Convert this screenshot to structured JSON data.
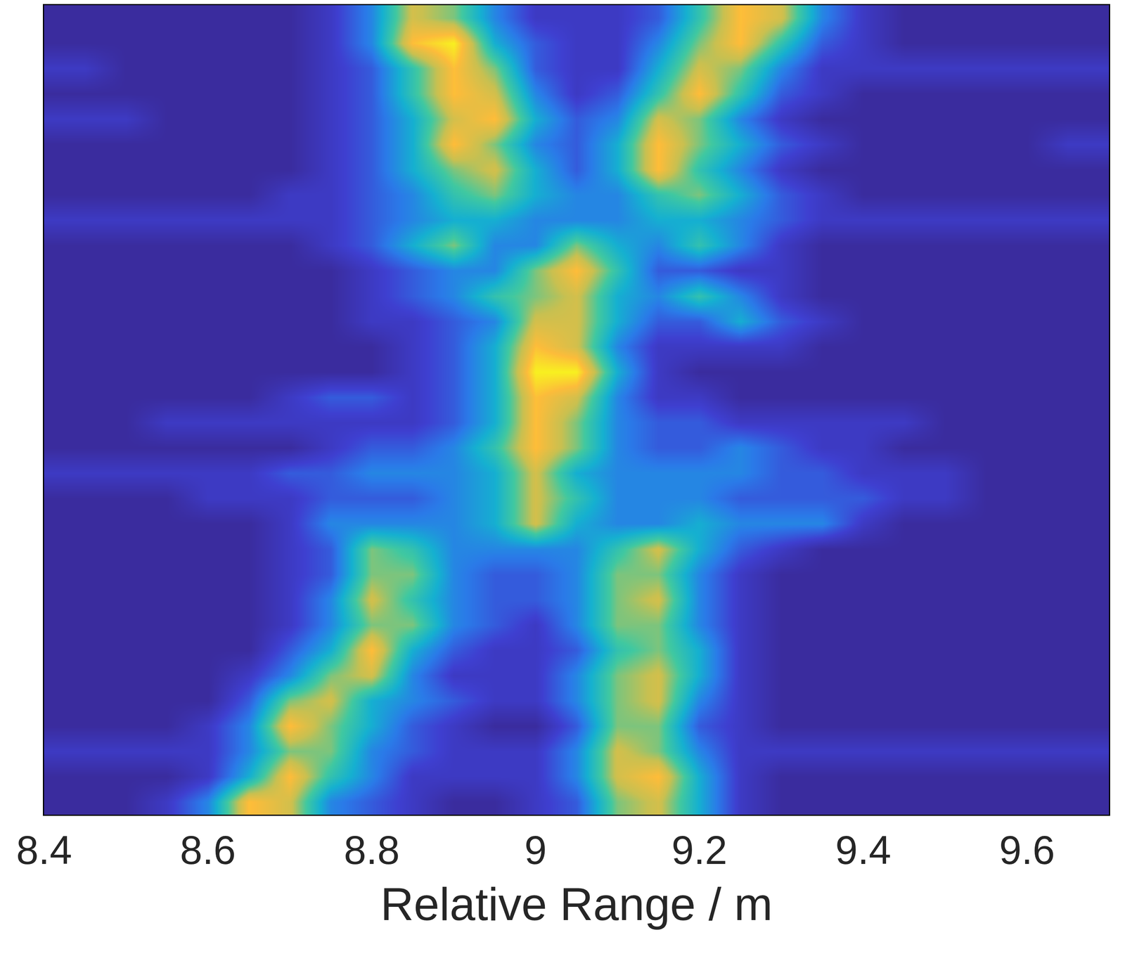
{
  "chart_data": {
    "type": "heatmap",
    "xlabel": "Relative Range / m",
    "xlim": [
      8.4,
      9.7
    ],
    "xticks": [
      8.4,
      8.6,
      8.8,
      9,
      9.2,
      9.4,
      9.6
    ],
    "ylim": [
      31.5,
      -0.5
    ],
    "tick_labels": "x",
    "grid": false,
    "zlim": [
      0,
      9
    ],
    "x": [
      8.4,
      8.45,
      8.5,
      8.55,
      8.6,
      8.65,
      8.7,
      8.75,
      8.8,
      8.85,
      8.9,
      8.95,
      9.0,
      9.05,
      9.1,
      9.15,
      9.2,
      9.25,
      9.3,
      9.35,
      9.4,
      9.45,
      9.5,
      9.55,
      9.6,
      9.65,
      9.7
    ],
    "y": [
      0,
      1,
      2,
      3,
      4,
      5,
      6,
      7,
      8,
      9,
      10,
      11,
      12,
      13,
      14,
      15,
      16,
      17,
      18,
      19,
      20,
      21,
      22,
      23,
      24,
      25,
      26,
      27,
      28,
      29,
      30,
      31
    ],
    "z": [
      [
        0,
        0,
        0,
        0,
        0,
        0,
        0,
        1,
        3,
        7,
        6,
        3,
        1,
        1,
        1,
        2,
        5,
        8,
        7,
        3,
        1,
        0,
        0,
        0,
        0,
        0,
        0
      ],
      [
        0,
        0,
        0,
        0,
        0,
        0,
        0,
        1,
        3,
        8,
        9,
        4,
        2,
        1,
        1,
        3,
        6,
        8,
        5,
        2,
        1,
        0,
        0,
        0,
        0,
        0,
        0
      ],
      [
        1,
        1,
        0,
        0,
        0,
        0,
        0,
        1,
        2,
        5,
        8,
        6,
        2,
        1,
        1,
        4,
        7,
        6,
        3,
        1,
        1,
        1,
        1,
        1,
        1,
        1,
        1
      ],
      [
        0,
        0,
        0,
        0,
        0,
        0,
        0,
        1,
        2,
        5,
        8,
        7,
        3,
        1,
        2,
        5,
        8,
        5,
        2,
        1,
        0,
        0,
        0,
        0,
        0,
        0,
        0
      ],
      [
        1,
        1,
        1,
        0,
        0,
        0,
        0,
        1,
        2,
        4,
        7,
        8,
        4,
        2,
        3,
        7,
        6,
        3,
        1,
        0,
        0,
        0,
        0,
        0,
        0,
        0,
        0
      ],
      [
        0,
        0,
        0,
        0,
        0,
        0,
        0,
        1,
        2,
        4,
        8,
        6,
        3,
        2,
        4,
        8,
        6,
        4,
        2,
        1,
        0,
        0,
        0,
        0,
        0,
        1,
        1
      ],
      [
        0,
        0,
        0,
        0,
        0,
        0,
        0,
        1,
        2,
        4,
        6,
        7,
        4,
        2,
        4,
        8,
        5,
        3,
        1,
        0,
        0,
        0,
        0,
        0,
        0,
        0,
        0
      ],
      [
        0,
        0,
        0,
        0,
        0,
        0,
        1,
        1,
        2,
        3,
        5,
        6,
        4,
        3,
        3,
        5,
        6,
        4,
        2,
        1,
        0,
        0,
        0,
        0,
        0,
        0,
        0
      ],
      [
        1,
        1,
        1,
        1,
        1,
        1,
        1,
        1,
        2,
        3,
        4,
        4,
        3,
        3,
        3,
        4,
        4,
        3,
        2,
        1,
        1,
        1,
        1,
        1,
        1,
        1,
        1
      ],
      [
        0,
        0,
        0,
        0,
        0,
        0,
        0,
        1,
        2,
        4,
        6,
        3,
        3,
        6,
        4,
        3,
        5,
        3,
        1,
        0,
        0,
        0,
        0,
        0,
        0,
        0,
        0
      ],
      [
        0,
        0,
        0,
        0,
        0,
        0,
        0,
        0,
        1,
        2,
        3,
        3,
        6,
        8,
        5,
        2,
        2,
        1,
        1,
        0,
        0,
        0,
        0,
        0,
        0,
        0,
        0
      ],
      [
        0,
        0,
        0,
        0,
        0,
        0,
        0,
        0,
        1,
        2,
        3,
        5,
        6,
        7,
        4,
        3,
        5,
        3,
        1,
        0,
        0,
        0,
        0,
        0,
        0,
        0,
        0
      ],
      [
        0,
        0,
        0,
        0,
        0,
        0,
        0,
        0,
        1,
        1,
        2,
        3,
        7,
        7,
        4,
        2,
        2,
        4,
        2,
        1,
        0,
        0,
        0,
        0,
        0,
        0,
        0
      ],
      [
        0,
        0,
        0,
        0,
        0,
        0,
        0,
        0,
        0,
        1,
        2,
        4,
        8,
        7,
        3,
        1,
        1,
        1,
        1,
        0,
        0,
        0,
        0,
        0,
        0,
        0,
        0
      ],
      [
        0,
        0,
        0,
        0,
        0,
        0,
        0,
        0,
        0,
        1,
        2,
        4,
        9,
        9,
        4,
        1,
        0,
        0,
        0,
        0,
        0,
        0,
        0,
        0,
        0,
        0,
        0
      ],
      [
        0,
        0,
        0,
        0,
        0,
        0,
        1,
        2,
        2,
        1,
        2,
        4,
        8,
        7,
        3,
        1,
        1,
        0,
        0,
        0,
        0,
        0,
        0,
        0,
        0,
        0,
        0
      ],
      [
        0,
        0,
        0,
        1,
        1,
        1,
        1,
        1,
        1,
        1,
        2,
        4,
        8,
        6,
        3,
        2,
        2,
        1,
        1,
        1,
        1,
        1,
        0,
        0,
        0,
        0,
        0
      ],
      [
        0,
        0,
        0,
        0,
        0,
        0,
        0,
        1,
        2,
        2,
        3,
        5,
        8,
        6,
        3,
        2,
        2,
        3,
        2,
        1,
        1,
        0,
        0,
        0,
        0,
        0,
        0
      ],
      [
        1,
        1,
        1,
        1,
        1,
        1,
        2,
        2,
        3,
        3,
        3,
        4,
        7,
        4,
        3,
        3,
        3,
        3,
        2,
        2,
        1,
        1,
        1,
        0,
        0,
        0,
        0
      ],
      [
        0,
        0,
        0,
        0,
        1,
        1,
        1,
        2,
        2,
        2,
        3,
        4,
        7,
        5,
        3,
        3,
        3,
        2,
        2,
        2,
        2,
        1,
        1,
        0,
        0,
        0,
        0
      ],
      [
        0,
        0,
        0,
        0,
        0,
        0,
        1,
        3,
        3,
        3,
        3,
        4,
        7,
        4,
        3,
        3,
        4,
        3,
        3,
        3,
        1,
        0,
        0,
        0,
        0,
        0,
        0
      ],
      [
        0,
        0,
        0,
        0,
        0,
        0,
        1,
        2,
        6,
        5,
        3,
        3,
        3,
        3,
        5,
        7,
        4,
        2,
        1,
        0,
        0,
        0,
        0,
        0,
        0,
        0,
        0
      ],
      [
        0,
        0,
        0,
        0,
        0,
        0,
        1,
        2,
        6,
        6,
        3,
        2,
        2,
        3,
        6,
        6,
        3,
        1,
        0,
        0,
        0,
        0,
        0,
        0,
        0,
        0,
        0
      ],
      [
        0,
        0,
        0,
        0,
        0,
        0,
        1,
        3,
        7,
        5,
        3,
        2,
        2,
        3,
        6,
        7,
        3,
        1,
        0,
        0,
        0,
        0,
        0,
        0,
        0,
        0,
        0
      ],
      [
        0,
        0,
        0,
        0,
        0,
        0,
        1,
        3,
        6,
        6,
        3,
        2,
        1,
        3,
        6,
        6,
        3,
        1,
        0,
        0,
        0,
        0,
        0,
        0,
        0,
        0,
        0
      ],
      [
        0,
        0,
        0,
        0,
        0,
        0,
        2,
        4,
        8,
        4,
        2,
        1,
        1,
        2,
        5,
        6,
        4,
        1,
        0,
        0,
        0,
        0,
        0,
        0,
        0,
        0,
        0
      ],
      [
        0,
        0,
        0,
        0,
        0,
        1,
        3,
        6,
        7,
        3,
        1,
        1,
        1,
        3,
        6,
        7,
        4,
        1,
        0,
        0,
        0,
        0,
        0,
        0,
        0,
        0,
        0
      ],
      [
        0,
        0,
        0,
        0,
        0,
        2,
        6,
        7,
        4,
        3,
        2,
        1,
        1,
        3,
        6,
        7,
        3,
        1,
        0,
        0,
        0,
        0,
        0,
        0,
        0,
        0,
        0
      ],
      [
        0,
        0,
        0,
        0,
        1,
        3,
        8,
        6,
        4,
        2,
        1,
        0,
        0,
        2,
        6,
        6,
        2,
        1,
        0,
        0,
        0,
        0,
        0,
        0,
        0,
        0,
        0
      ],
      [
        1,
        1,
        1,
        1,
        1,
        3,
        6,
        6,
        3,
        2,
        1,
        1,
        1,
        3,
        7,
        6,
        3,
        1,
        1,
        1,
        1,
        1,
        1,
        1,
        1,
        1,
        1
      ],
      [
        0,
        0,
        0,
        0,
        1,
        4,
        8,
        5,
        3,
        1,
        1,
        1,
        1,
        3,
        7,
        8,
        4,
        1,
        0,
        0,
        0,
        0,
        0,
        0,
        0,
        0,
        0
      ],
      [
        0,
        0,
        0,
        1,
        3,
        8,
        7,
        3,
        2,
        1,
        0,
        0,
        1,
        2,
        6,
        7,
        4,
        1,
        0,
        0,
        0,
        0,
        0,
        0,
        0,
        0,
        0
      ]
    ]
  }
}
